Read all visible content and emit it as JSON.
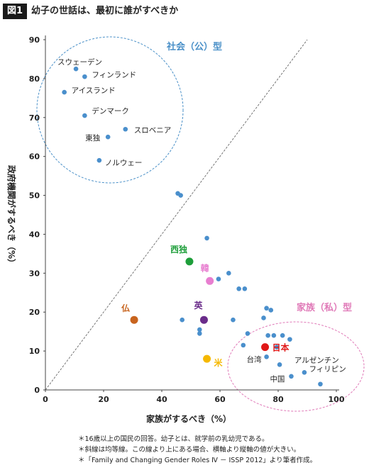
{
  "header": {
    "figure_label": "図1",
    "title": "幼子の世話は、最初に誰がすべきか"
  },
  "chart_data": {
    "type": "scatter",
    "xlabel": "家族がするべき（%）",
    "ylabel": "政府機関がするべき（%）",
    "xlim": [
      0,
      100
    ],
    "ylim": [
      0,
      90
    ],
    "x_ticks": [
      0,
      20,
      40,
      60,
      80,
      100
    ],
    "y_ticks": [
      0,
      10,
      20,
      30,
      40,
      50,
      60,
      70,
      80,
      90
    ],
    "grid": false,
    "reference_line": "y = x (dashed)",
    "regions": [
      {
        "label": "社会（公）型",
        "color": "#4a90c8"
      },
      {
        "label": "家族（私）型",
        "color": "#e07ab8"
      }
    ],
    "default_point_color": "#4a8fcc",
    "highlight_colors": {
      "西独": "#1e9e3a",
      "韓": "#e87ed0",
      "英": "#6a2c8a",
      "仏": "#c8641e",
      "米": "#f5b800",
      "日本": "#e01818"
    },
    "points": [
      {
        "label": "スウェーデン",
        "x": 10.5,
        "y": 82.5
      },
      {
        "label": "フィンランド",
        "x": 13.5,
        "y": 80.5
      },
      {
        "label": "アイスランド",
        "x": 6.5,
        "y": 76.5
      },
      {
        "label": "デンマーク",
        "x": 13.5,
        "y": 70.5
      },
      {
        "label": "スロベニア",
        "x": 27.5,
        "y": 67.0
      },
      {
        "label": "東独",
        "x": 21.5,
        "y": 65.0
      },
      {
        "label": "ノルウェー",
        "x": 18.5,
        "y": 59.0
      },
      {
        "label": "",
        "x": 45.5,
        "y": 50.5
      },
      {
        "label": "",
        "x": 46.5,
        "y": 50.0
      },
      {
        "label": "",
        "x": 55.5,
        "y": 39.0
      },
      {
        "label": "西独",
        "x": 49.5,
        "y": 33.0
      },
      {
        "label": "",
        "x": 63.0,
        "y": 30.0
      },
      {
        "label": "",
        "x": 59.5,
        "y": 28.5
      },
      {
        "label": "韓",
        "x": 56.5,
        "y": 28.0
      },
      {
        "label": "",
        "x": 66.5,
        "y": 26.0
      },
      {
        "label": "",
        "x": 68.5,
        "y": 26.0
      },
      {
        "label": "",
        "x": 76.0,
        "y": 21.0
      },
      {
        "label": "",
        "x": 77.5,
        "y": 20.5
      },
      {
        "label": "仏",
        "x": 30.5,
        "y": 18.0
      },
      {
        "label": "",
        "x": 47.0,
        "y": 18.0
      },
      {
        "label": "英",
        "x": 54.5,
        "y": 18.0
      },
      {
        "label": "",
        "x": 64.5,
        "y": 18.0
      },
      {
        "label": "",
        "x": 75.0,
        "y": 18.5
      },
      {
        "label": "",
        "x": 53.0,
        "y": 15.5
      },
      {
        "label": "",
        "x": 53.0,
        "y": 14.5
      },
      {
        "label": "",
        "x": 69.5,
        "y": 14.5
      },
      {
        "label": "",
        "x": 76.5,
        "y": 14.0
      },
      {
        "label": "",
        "x": 78.5,
        "y": 14.0
      },
      {
        "label": "",
        "x": 81.5,
        "y": 14.0
      },
      {
        "label": "",
        "x": 84.0,
        "y": 13.0
      },
      {
        "label": "",
        "x": 68.0,
        "y": 11.5
      },
      {
        "label": "日本",
        "x": 75.5,
        "y": 11.0
      },
      {
        "label": "",
        "x": 79.5,
        "y": 11.0
      },
      {
        "label": "台湾",
        "x": 76.0,
        "y": 8.5
      },
      {
        "label": "米",
        "x": 55.5,
        "y": 8.0
      },
      {
        "label": "",
        "x": 80.5,
        "y": 6.5
      },
      {
        "label": "アルゼンチン",
        "x": 89.0,
        "y": 4.5
      },
      {
        "label": "中国",
        "x": 84.5,
        "y": 3.5
      },
      {
        "label": "フィリピン",
        "x": 94.5,
        "y": 1.5
      }
    ]
  },
  "notes": [
    "＊16歳以上の国民の回答。幼子とは、就学前の乳幼児である。",
    "＊斜線は均等線。この線より上にある場合、横軸より縦軸の値が大きい。",
    "＊「Family and Changing Gender Roles Ⅳ － ISSP 2012」より筆者作成。"
  ]
}
